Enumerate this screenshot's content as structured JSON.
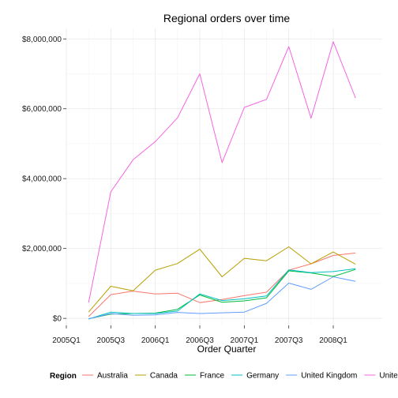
{
  "chart_data": {
    "type": "line",
    "title": "Regional orders over time",
    "xlabel": "Order Quarter",
    "ylabel": "",
    "x_ticks": [
      "2005Q1",
      "2005Q3",
      "2006Q1",
      "2006Q3",
      "2007Q1",
      "2007Q3",
      "2008Q1"
    ],
    "y_ticks": [
      "$0",
      "$2,000,000",
      "$4,000,000",
      "$6,000,000",
      "$8,000,000"
    ],
    "y_tick_values": [
      0,
      2000000,
      4000000,
      6000000,
      8000000
    ],
    "xlim": [
      "2005Q1",
      "2008Q3"
    ],
    "ylim": [
      -200000,
      8300000
    ],
    "grid": true,
    "legend_position": "bottom",
    "legend_title": "Region",
    "x": [
      "2005Q2",
      "2005Q3",
      "2005Q4",
      "2006Q1",
      "2006Q2",
      "2006Q3",
      "2006Q4",
      "2007Q1",
      "2007Q2",
      "2007Q3",
      "2007Q4",
      "2008Q1",
      "2008Q2"
    ],
    "series": [
      {
        "name": "Australia",
        "color": "#F8766D",
        "values": [
          50000,
          680000,
          780000,
          700000,
          720000,
          450000,
          540000,
          650000,
          750000,
          1380000,
          1560000,
          1800000,
          1870000
        ]
      },
      {
        "name": "Canada",
        "color": "#B79F00",
        "values": [
          180000,
          920000,
          790000,
          1380000,
          1570000,
          1980000,
          1190000,
          1720000,
          1650000,
          2050000,
          1560000,
          1900000,
          1550000
        ]
      },
      {
        "name": "France",
        "color": "#00BA38",
        "values": [
          -10000,
          120000,
          140000,
          150000,
          260000,
          670000,
          460000,
          500000,
          590000,
          1360000,
          1300000,
          1200000,
          1400000
        ]
      },
      {
        "name": "Germany",
        "color": "#00BFC4",
        "values": [
          -20000,
          180000,
          140000,
          140000,
          210000,
          700000,
          510000,
          560000,
          640000,
          1390000,
          1310000,
          1340000,
          1420000
        ]
      },
      {
        "name": "United Kingdom",
        "color": "#619CFF",
        "values": [
          -10000,
          140000,
          90000,
          100000,
          170000,
          140000,
          160000,
          180000,
          430000,
          1010000,
          830000,
          1190000,
          1060000
        ]
      },
      {
        "name": "United States",
        "color": "#F564E3",
        "values": [
          450000,
          3620000,
          4540000,
          5060000,
          5740000,
          7000000,
          4460000,
          6040000,
          6270000,
          7780000,
          5730000,
          7920000,
          6310000
        ]
      }
    ]
  }
}
